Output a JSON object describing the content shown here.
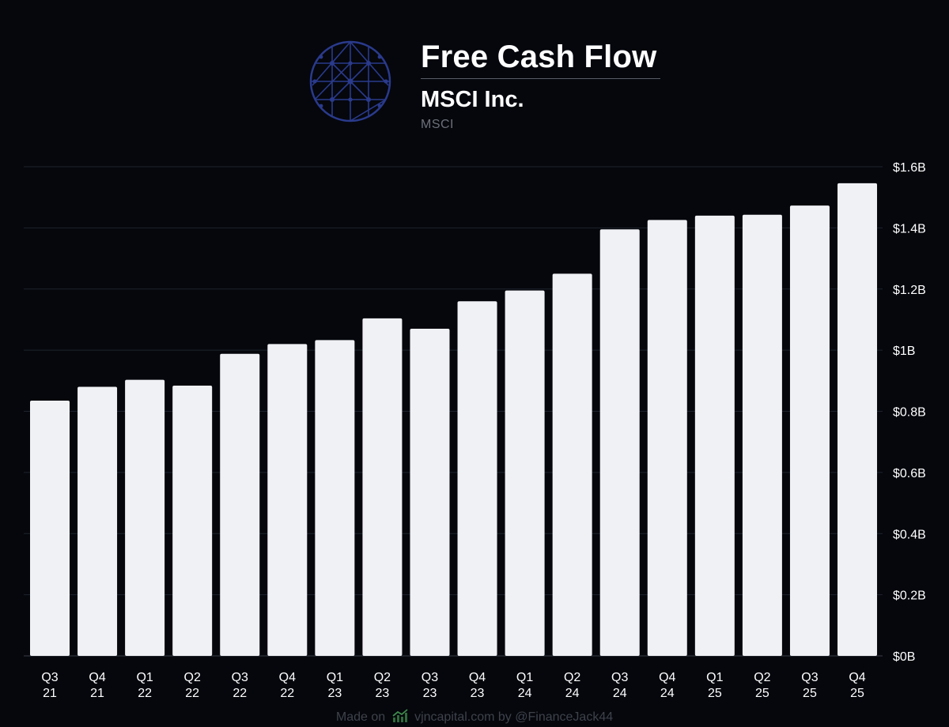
{
  "header": {
    "title": "Free Cash Flow",
    "company": "MSCI Inc.",
    "ticker": "MSCI"
  },
  "footer": {
    "made_on": "Made on",
    "site": "vjncapital.com",
    "by": "by",
    "handle": "@FinanceJack44"
  },
  "icons": {
    "logo": "msci-globe-logo",
    "footer": "chart-trend-icon"
  },
  "colors": {
    "background": "#05070d",
    "bar": "#f0f1f5",
    "grid": "#1f232c",
    "logo": "#2a3a8c",
    "footer_icon": "#2f6b3a"
  },
  "chart_data": {
    "type": "bar",
    "title": "Free Cash Flow",
    "categories": [
      "Q3 21",
      "Q4 21",
      "Q1 22",
      "Q2 22",
      "Q3 22",
      "Q4 22",
      "Q1 23",
      "Q2 23",
      "Q3 23",
      "Q4 23",
      "Q1 24",
      "Q2 24",
      "Q3 24",
      "Q4 24",
      "Q1 25",
      "Q2 25",
      "Q3 25",
      "Q4 25"
    ],
    "category_lines": [
      [
        "Q3",
        "21"
      ],
      [
        "Q4",
        "21"
      ],
      [
        "Q1",
        "22"
      ],
      [
        "Q2",
        "22"
      ],
      [
        "Q3",
        "22"
      ],
      [
        "Q4",
        "22"
      ],
      [
        "Q1",
        "23"
      ],
      [
        "Q2",
        "23"
      ],
      [
        "Q3",
        "23"
      ],
      [
        "Q4",
        "23"
      ],
      [
        "Q1",
        "24"
      ],
      [
        "Q2",
        "24"
      ],
      [
        "Q3",
        "24"
      ],
      [
        "Q4",
        "24"
      ],
      [
        "Q1",
        "25"
      ],
      [
        "Q2",
        "25"
      ],
      [
        "Q3",
        "25"
      ],
      [
        "Q4",
        "25"
      ]
    ],
    "series": [
      {
        "values": [
          0.835,
          0.88,
          0.903,
          0.884,
          0.988,
          1.02,
          1.033,
          1.104,
          1.07,
          1.16,
          1.195,
          1.25,
          1.395,
          1.426,
          1.44,
          1.443,
          1.473,
          1.546
        ]
      }
    ],
    "ylim": [
      0,
      1.6
    ],
    "yticks": [
      0,
      0.2,
      0.4,
      0.6,
      0.8,
      1.0,
      1.2,
      1.4,
      1.6
    ],
    "ytick_labels": [
      "$0B",
      "$0.2B",
      "$0.4B",
      "$0.6B",
      "$0.8B",
      "$1B",
      "$1.2B",
      "$1.4B",
      "$1.6B"
    ],
    "y_axis_side": "right",
    "grid": true
  }
}
